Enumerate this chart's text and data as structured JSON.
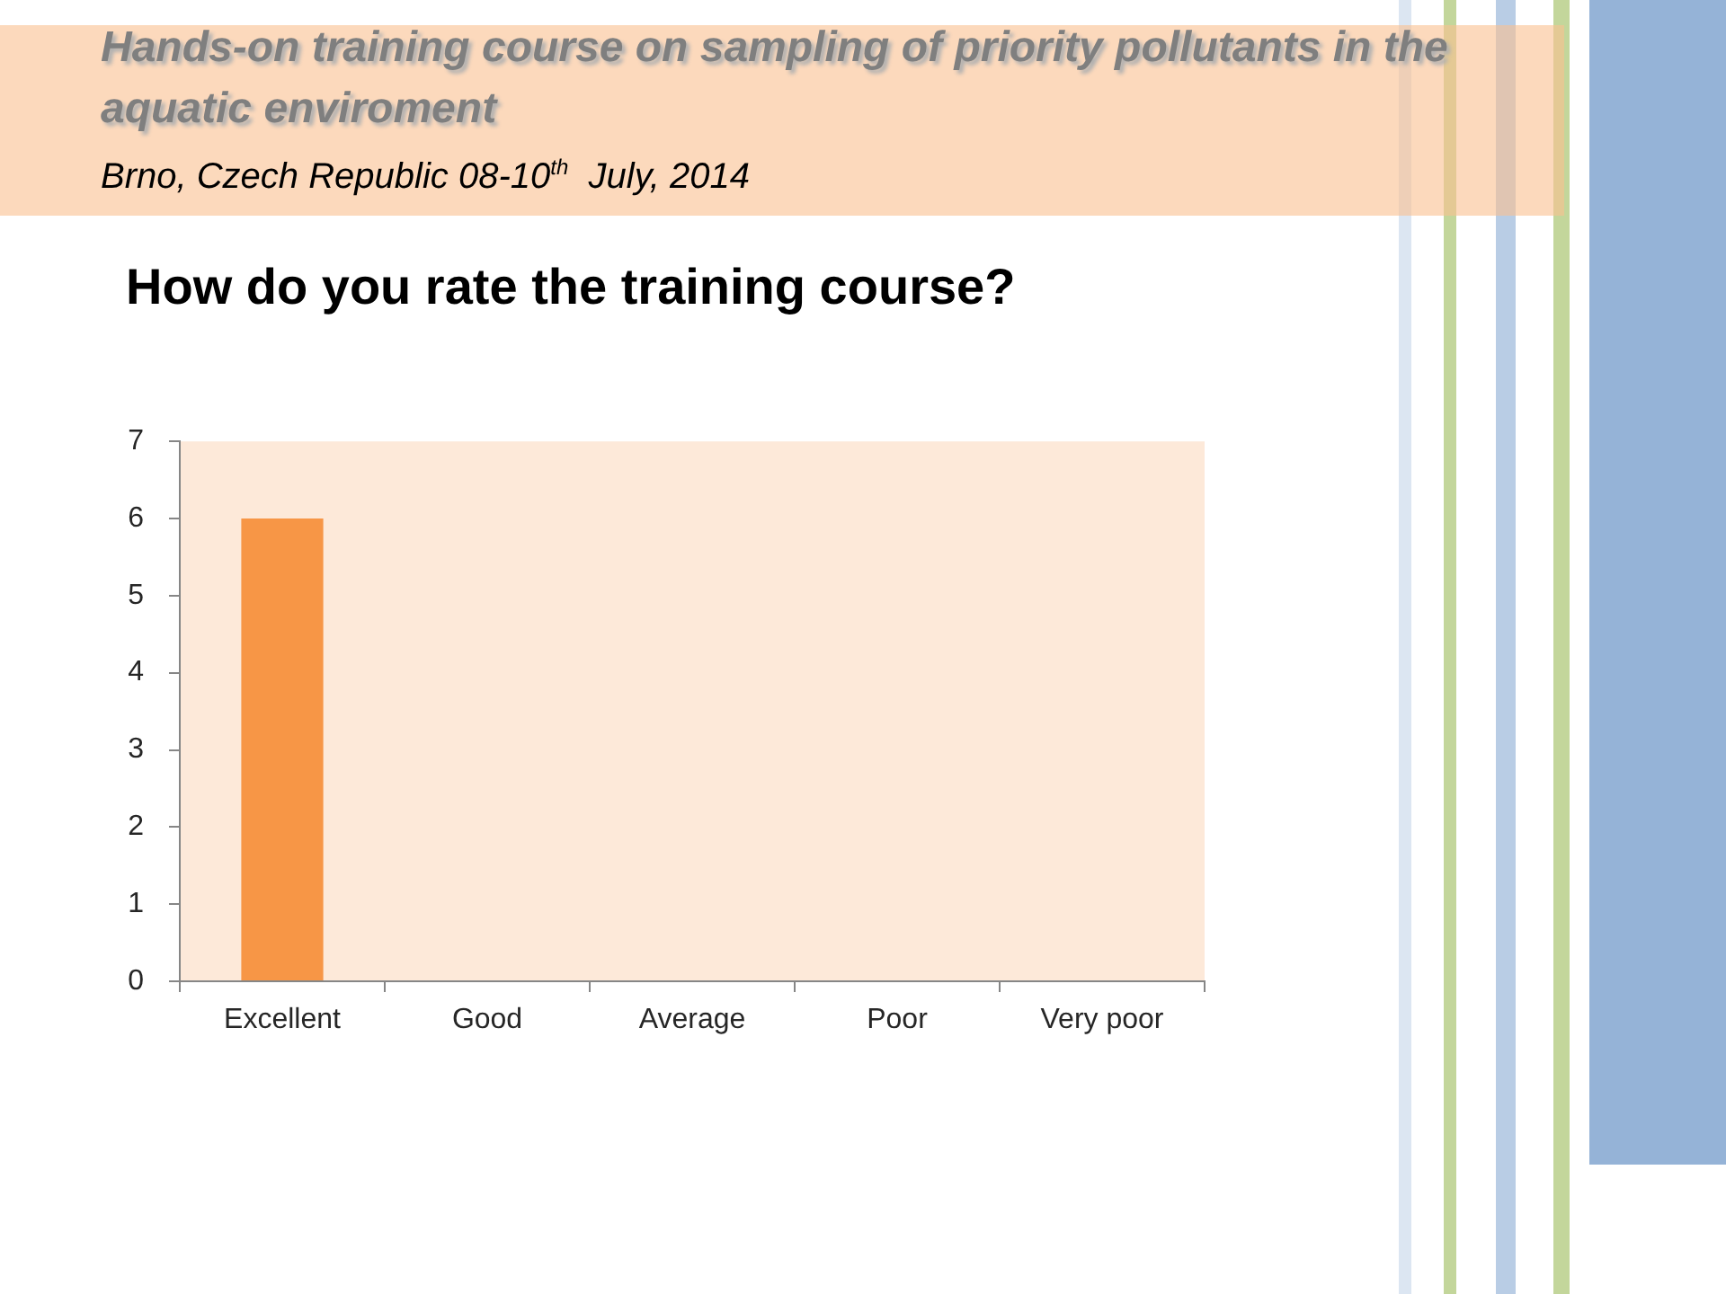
{
  "chart_data": {
    "type": "bar",
    "title": "How do you rate the training course?",
    "annotations": [
      "Hands-on training course on sampling of priority pollutants in the aquatic enviroment",
      "Brno, Czech Republic 08-10$^{th}$  July, 2014"
    ],
    "categories": [
      "Excellent",
      "Good",
      "Average",
      "Poor",
      "Very poor"
    ],
    "values": [
      6,
      0,
      0,
      0,
      0
    ],
    "color": "#f79646",
    "ylim": [
      0,
      7
    ],
    "yticks": [
      0,
      1,
      2,
      3,
      4,
      5,
      6,
      7
    ],
    "grid": false,
    "legend": false
  }
}
